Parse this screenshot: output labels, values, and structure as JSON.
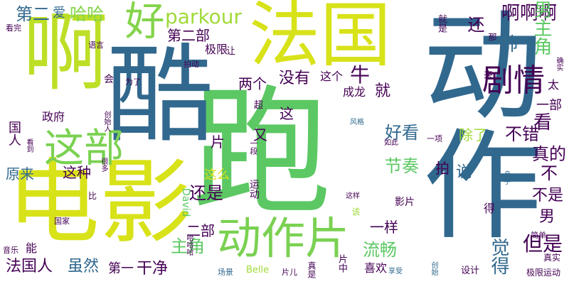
{
  "words": {
    "pao": "跑",
    "dongzuo": "动作",
    "ku": "酷",
    "dianying": "电影",
    "fa": "法国",
    "a": "啊",
    "hao": "好",
    "juqing": "剧情",
    "zhebu": "这部",
    "dongzuopian": "动作片",
    "parkour": "parkour",
    "diyer": "第二",
    "ai": "爱",
    "haha": "哈哈",
    "aaa": "啊啊啊",
    "nanzhujue": "男主角",
    "shuai": "帅",
    "kan": "看",
    "huan": "还",
    "dierbu": "第二部",
    "jixian": "极限",
    "niu": "牛",
    "meiyou": "没有",
    "lianggeren": "两个",
    "jiu": "就",
    "chenglong": "成龙",
    "zhege": "这个",
    "lai": "来",
    "tai": "太",
    "yibu": "一部",
    "zhengfu": "政府",
    "buchuo": "不错",
    "chule": "除了",
    "haokan": "好看",
    "pian": "片",
    "you": "又",
    "zhen_de": "真的",
    "jiezou": "节奏",
    "shuo": "说",
    "bu": "不",
    "zhezhong": "这种",
    "yuanlai": "原来",
    "zhezhe": "这么",
    "haishi": "还是",
    "bushi": "不是",
    "nan": "男",
    "yiyang": "一样",
    "erbu": "二部",
    "zhujue": "主角",
    "liuchang": "流畅",
    "danshi": "但是",
    "juede": "觉得",
    "suiran": "虽然",
    "faguoren": "法国人",
    "di": "第一",
    "ganjing": "干净",
    "xihuan": "喜欢",
    "neng": "能",
    "yinyue": "音乐",
    "changjing": "场景",
    "belle": "Belle",
    "david": "David",
    "yingpian": "影片",
    "de": "得",
    "sheji": "设计",
    "jixianyundong": "极限运动",
    "jiandan": "简单",
    "zhenshi": "真实",
    "chuangshi": "创始",
    "xiangshou": "享受",
    "pianzhong": "片中",
    "shenshou": "身手",
    "guojia": "国家",
    "bi": "比",
    "henduo": "很多",
    "kandao": "看到",
    "guoren": "国人",
    "yundong": "运动",
    "zheyang": "这样",
    "fengge": "风格",
    "chao": "超",
    "pai": "拍",
    "weile": "为了",
    "hui": "会",
    "yuyan": "语言",
    "kanwan": "看完",
    "rang": "让",
    "paidong": "拍动",
    "na": "那",
    "jiushi": "就是",
    "queshi": "确实",
    "yixiang": "一项",
    "ruci": "如此",
    "yiduan": "一段",
    "chuangzaoren": "创始人",
    "haihai": "哈哈哈",
    "pianer": "片儿",
    "zhenshi2": "真是",
    "gai": "该",
    "zhege2": "这"
  }
}
